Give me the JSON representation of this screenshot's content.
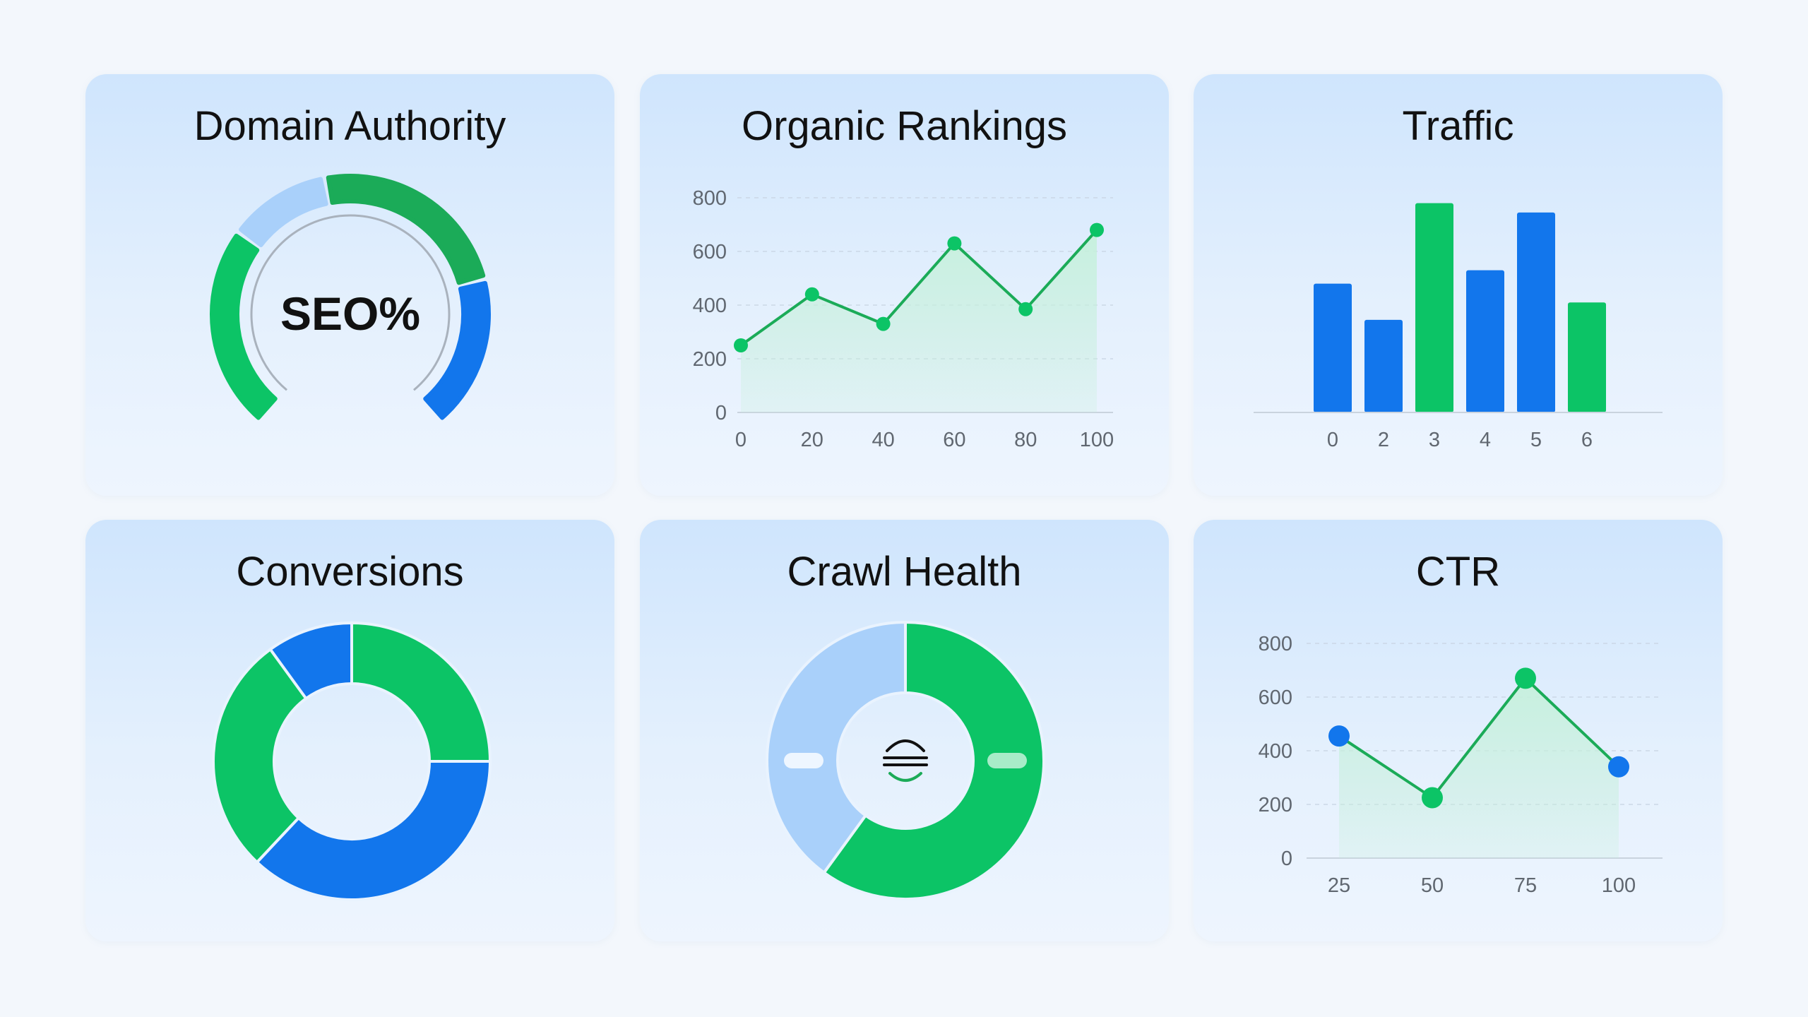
{
  "colors": {
    "green": "#0cc466",
    "green_dark": "#1bab58",
    "blue": "#1276ec",
    "light_blue": "#a9d0fa",
    "mint_fill": "#c6f0dc",
    "axis": "#c9d3de",
    "grid": "#cbd8e6",
    "text": "#111111",
    "tick": "#606770"
  },
  "chart_data": [
    {
      "type": "gauge",
      "title": "Domain Authority",
      "center_label": "SEO%",
      "segments": [
        {
          "value": 40,
          "color": "#0cc466"
        },
        {
          "value": 20,
          "color": "#a9d0fa"
        },
        {
          "value": 40,
          "color": "#1bab58"
        },
        {
          "value": 30,
          "color": "#1276ec"
        }
      ]
    },
    {
      "type": "line",
      "title": "Organic Rankings",
      "x": [
        0,
        20,
        40,
        60,
        80,
        100
      ],
      "y": [
        250,
        440,
        330,
        630,
        385,
        680
      ],
      "xticks": [
        "0",
        "20",
        "40",
        "60",
        "80",
        "100"
      ],
      "yticks": [
        "0",
        "200",
        "400",
        "600",
        "800"
      ],
      "xlim": [
        0,
        100
      ],
      "ylim": [
        0,
        800
      ],
      "grid": true,
      "area_fill": true
    },
    {
      "type": "bar",
      "title": "Traffic",
      "categories": [
        "0",
        "2",
        "3",
        "4",
        "5",
        "6"
      ],
      "values": [
        480,
        345,
        780,
        530,
        745,
        410
      ],
      "colors": [
        "#1276ec",
        "#1276ec",
        "#0cc466",
        "#1276ec",
        "#1276ec",
        "#0cc466"
      ],
      "ylim": [
        0,
        800
      ]
    },
    {
      "type": "pie",
      "title": "Conversions",
      "donut": true,
      "slices": [
        {
          "value": 25,
          "color": "#0cc466"
        },
        {
          "value": 37,
          "color": "#1276ec"
        },
        {
          "value": 28,
          "color": "#0cc466"
        },
        {
          "value": 10,
          "color": "#1276ec"
        }
      ]
    },
    {
      "type": "pie",
      "title": "Crawl Health",
      "donut": true,
      "center_icon": "wave-icon",
      "slices": [
        {
          "value": 60,
          "color": "#0cc466"
        },
        {
          "value": 40,
          "color": "#a9d0fa"
        }
      ]
    },
    {
      "type": "line",
      "title": "CTR",
      "x": [
        25,
        50,
        75,
        100
      ],
      "y": [
        455,
        225,
        670,
        340
      ],
      "point_colors": [
        "#1276ec",
        "#0cc466",
        "#0cc466",
        "#1276ec"
      ],
      "xticks": [
        "25",
        "50",
        "75",
        "100"
      ],
      "yticks": [
        "0",
        "200",
        "400",
        "600",
        "800"
      ],
      "xlim": [
        25,
        100
      ],
      "ylim": [
        0,
        800
      ],
      "grid": true,
      "area_fill": true
    }
  ]
}
